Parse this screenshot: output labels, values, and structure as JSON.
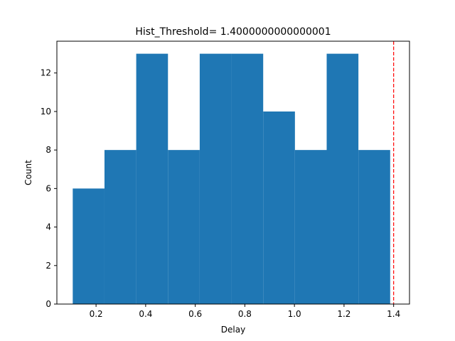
{
  "chart_data": {
    "type": "bar",
    "title": "Hist_Threshold= 1.4000000000000001",
    "xlabel": "Delay",
    "ylabel": "Count",
    "bins": [
      {
        "x0": 0.106,
        "x1": 0.234,
        "count": 6
      },
      {
        "x0": 0.234,
        "x1": 0.362,
        "count": 8
      },
      {
        "x0": 0.362,
        "x1": 0.49,
        "count": 13
      },
      {
        "x0": 0.49,
        "x1": 0.618,
        "count": 8
      },
      {
        "x0": 0.618,
        "x1": 0.746,
        "count": 13
      },
      {
        "x0": 0.746,
        "x1": 0.874,
        "count": 13
      },
      {
        "x0": 0.874,
        "x1": 1.002,
        "count": 10
      },
      {
        "x0": 1.002,
        "x1": 1.13,
        "count": 8
      },
      {
        "x0": 1.13,
        "x1": 1.258,
        "count": 13
      },
      {
        "x0": 1.258,
        "x1": 1.386,
        "count": 8
      }
    ],
    "threshold": 1.4,
    "xlim": [
      0.042,
      1.464
    ],
    "ylim": [
      0,
      13.65
    ],
    "xticks": [
      "0.2",
      "0.4",
      "0.6",
      "0.8",
      "1.0",
      "1.2",
      "1.4"
    ],
    "yticks": [
      "0",
      "2",
      "4",
      "6",
      "8",
      "10",
      "12"
    ],
    "grid": false,
    "bar_color": "#1f77b4",
    "threshold_color": "#ff0000"
  }
}
